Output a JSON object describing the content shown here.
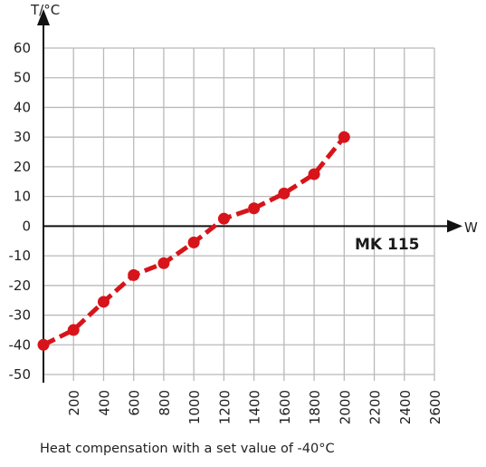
{
  "chart_data": {
    "type": "line",
    "xlabel": "W",
    "ylabel": "T/°C",
    "x_ticks": [
      "200",
      "400",
      "600",
      "800",
      "1000",
      "1200",
      "1400",
      "1600",
      "1800",
      "2000",
      "2200",
      "2400",
      "2600"
    ],
    "y_ticks": [
      "60",
      "50",
      "40",
      "30",
      "20",
      "10",
      "0",
      "-10",
      "-20",
      "-30",
      "-40",
      "-50"
    ],
    "xlim": [
      0,
      2600
    ],
    "ylim": [
      -50,
      60
    ],
    "grid": true,
    "series": [
      {
        "color": "#d7141a",
        "x": [
          0,
          200,
          400,
          600,
          800,
          1000,
          1200,
          1400,
          1600,
          1800,
          2000
        ],
        "y": [
          -40,
          -35,
          -25.5,
          -16.5,
          -12.5,
          -5.5,
          2.5,
          6,
          11,
          17.5,
          30
        ]
      }
    ],
    "annotation": "MK 115"
  },
  "caption": "Heat compensation with a set value of -40°C"
}
